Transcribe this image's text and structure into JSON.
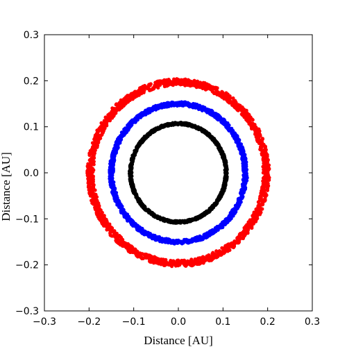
{
  "chart_data": {
    "type": "scatter",
    "title": "",
    "xlabel": "Distance  [AU]",
    "ylabel": "Distance  [AU]",
    "xlim": [
      -0.3,
      0.3
    ],
    "ylim": [
      -0.3,
      0.3
    ],
    "xticks": [
      -0.3,
      -0.2,
      -0.1,
      0.0,
      0.1,
      0.2,
      0.3
    ],
    "yticks": [
      -0.3,
      -0.2,
      -0.1,
      0.0,
      0.1,
      0.2,
      0.3
    ],
    "xtick_labels": [
      "−0.3",
      "−0.2",
      "−0.1",
      "0.0",
      "0.1",
      "0.2",
      "0.3"
    ],
    "ytick_labels": [
      "−0.3",
      "−0.2",
      "−0.1",
      "0.0",
      "0.1",
      "0.2",
      "0.3"
    ],
    "grid": false,
    "series": [
      {
        "color": "#ff0000",
        "center": [
          0.0,
          0.0
        ],
        "radius": 0.197,
        "band_width": 0.014,
        "point_count": 1400
      },
      {
        "color": "#0000ff",
        "center": [
          0.0,
          0.0
        ],
        "radius": 0.15,
        "band_width": 0.009,
        "point_count": 1200
      },
      {
        "color": "#000000",
        "center": [
          0.0,
          0.0
        ],
        "radius": 0.107,
        "band_width": 0.005,
        "point_count": 1000
      }
    ]
  }
}
